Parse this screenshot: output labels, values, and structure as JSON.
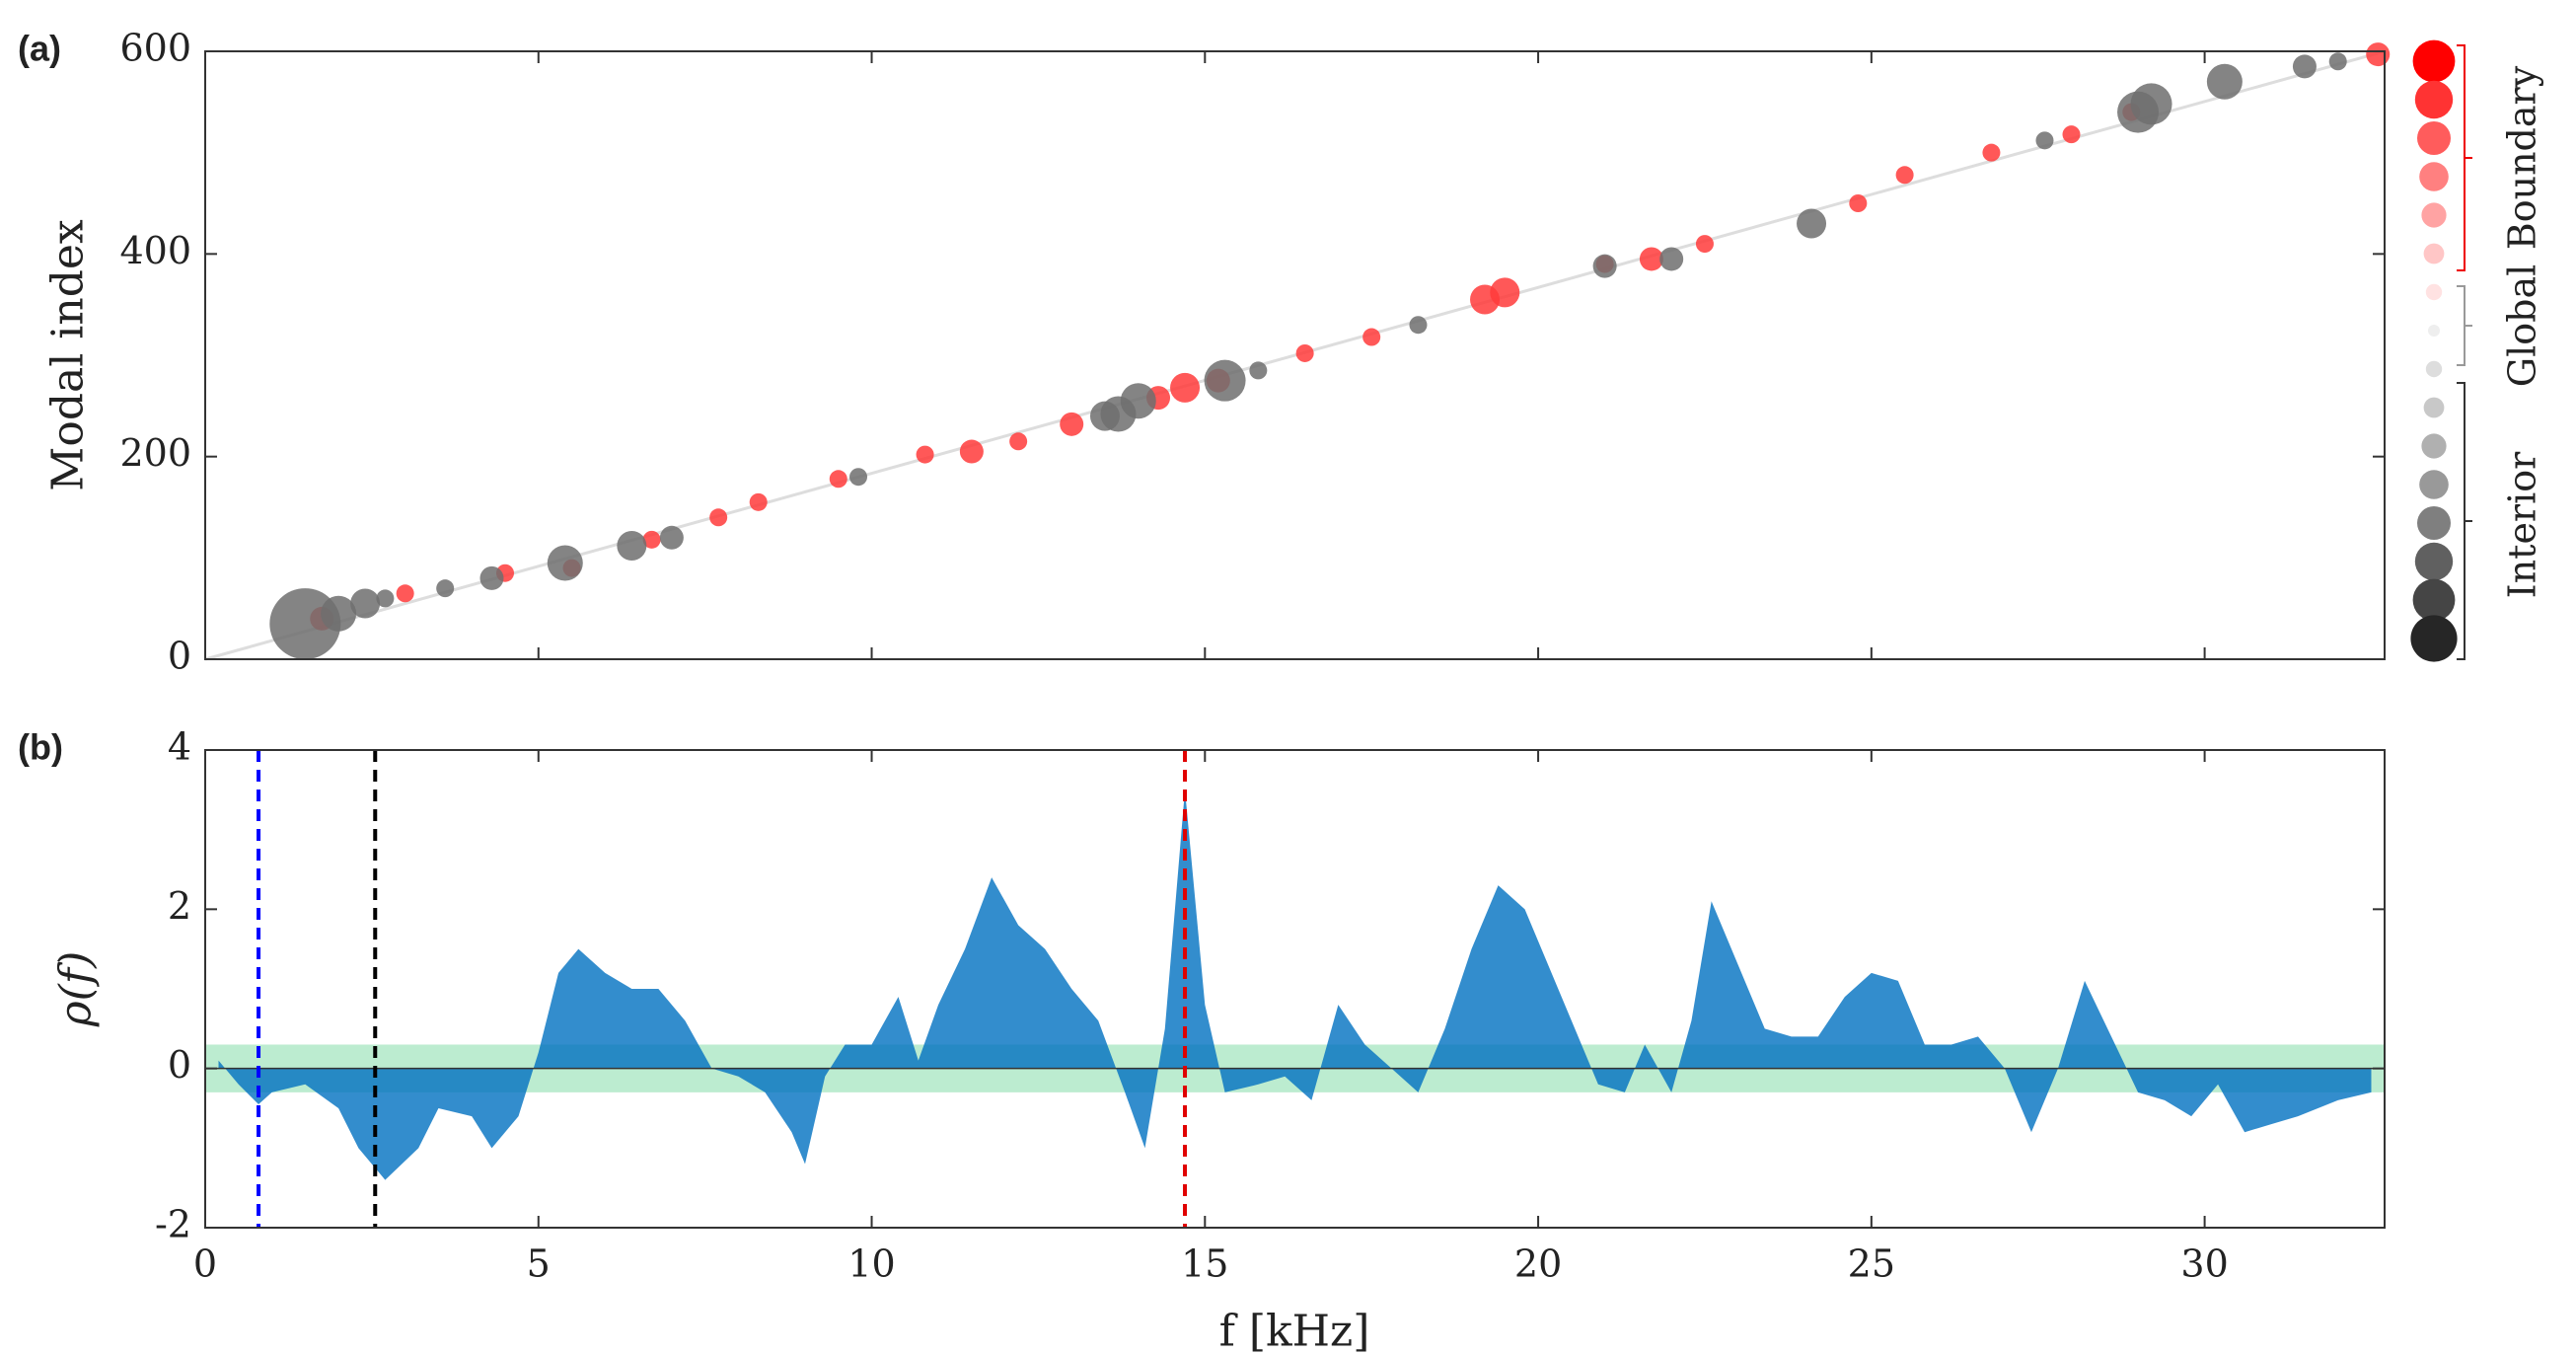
{
  "chart_data": [
    {
      "type": "scatter",
      "panel_label": "(a)",
      "ylabel": "Modal index",
      "xlim": [
        0,
        32.7
      ],
      "xticks": [
        0,
        5,
        10,
        15,
        20,
        25,
        30
      ],
      "ylim": [
        0,
        600
      ],
      "yticks": [
        0,
        200,
        400,
        600
      ],
      "legend_labels": [
        "Boundary",
        "Global",
        "Interior"
      ],
      "series": [
        {
          "name": "Boundary",
          "color": "#ff3b3b",
          "x": [
            1.75,
            3.0,
            4.5,
            5.5,
            6.7,
            7.7,
            8.3,
            9.5,
            10.8,
            11.5,
            12.2,
            13.0,
            14.3,
            14.7,
            15.2,
            16.5,
            17.5,
            19.2,
            19.5,
            21.0,
            21.7,
            22.5,
            24.8,
            25.5,
            26.8,
            28.0,
            28.9,
            32.6
          ],
          "values": [
            40,
            65,
            85,
            90,
            118,
            140,
            155,
            178,
            202,
            205,
            215,
            232,
            258,
            268,
            275,
            302,
            318,
            355,
            362,
            390,
            395,
            410,
            450,
            478,
            500,
            518,
            540,
            597
          ],
          "sizes": [
            4,
            3,
            3,
            3,
            3,
            3,
            3,
            3,
            3,
            4,
            3,
            4,
            4,
            5,
            4,
            3,
            3,
            5,
            5,
            3,
            4,
            3,
            3,
            3,
            3,
            3,
            3,
            4
          ]
        },
        {
          "name": "Interior",
          "color": "#6e6e6e",
          "x": [
            1.5,
            2.0,
            2.4,
            2.7,
            3.6,
            4.3,
            5.4,
            6.4,
            7.0,
            9.8,
            13.5,
            13.7,
            14.0,
            15.3,
            15.8,
            18.2,
            21.0,
            22.0,
            24.1,
            27.6,
            29.0,
            29.2,
            30.3,
            31.5,
            32.0
          ],
          "values": [
            35,
            45,
            55,
            60,
            70,
            80,
            95,
            112,
            120,
            180,
            240,
            242,
            255,
            275,
            285,
            330,
            388,
            395,
            430,
            512,
            540,
            548,
            570,
            585,
            590
          ],
          "sizes": [
            12,
            6,
            5,
            3,
            3,
            4,
            6,
            5,
            4,
            3,
            5,
            6,
            6,
            7,
            3,
            3,
            4,
            4,
            5,
            3,
            7,
            7,
            6,
            4,
            3
          ]
        }
      ]
    },
    {
      "type": "area",
      "panel_label": "(b)",
      "ylabel": "ρ(f)",
      "xlabel": "f  [kHz]",
      "color": "#0070c0",
      "xlim": [
        0,
        32.7
      ],
      "xticks": [
        0,
        5,
        10,
        15,
        20,
        25,
        30
      ],
      "ylim": [
        -2,
        4
      ],
      "yticks": [
        -2,
        0,
        2,
        4
      ],
      "band": [
        -0.3,
        0.3
      ],
      "band_color": "#8fe0b0",
      "vlines": [
        {
          "x": 0.8,
          "color": "#0000ff"
        },
        {
          "x": 2.55,
          "color": "#000000"
        },
        {
          "x": 14.7,
          "color": "#e00000"
        }
      ],
      "x": [
        0.2,
        0.5,
        0.8,
        1.0,
        1.5,
        2.0,
        2.3,
        2.7,
        3.2,
        3.5,
        4.0,
        4.3,
        4.7,
        5.0,
        5.3,
        5.6,
        6.0,
        6.4,
        6.8,
        7.2,
        7.6,
        8.0,
        8.4,
        8.8,
        9.0,
        9.3,
        9.6,
        10.0,
        10.4,
        10.7,
        11.0,
        11.4,
        11.8,
        12.2,
        12.6,
        13.0,
        13.4,
        13.8,
        14.1,
        14.4,
        14.7,
        15.0,
        15.3,
        15.8,
        16.2,
        16.6,
        17.0,
        17.4,
        17.8,
        18.2,
        18.6,
        19.0,
        19.4,
        19.8,
        20.1,
        20.5,
        20.9,
        21.3,
        21.6,
        22.0,
        22.3,
        22.6,
        23.0,
        23.4,
        23.8,
        24.2,
        24.6,
        25.0,
        25.4,
        25.8,
        26.2,
        26.6,
        27.0,
        27.4,
        27.8,
        28.2,
        28.6,
        29.0,
        29.4,
        29.8,
        30.2,
        30.6,
        31.0,
        31.4,
        32.0,
        32.5
      ],
      "values": [
        0.1,
        -0.2,
        -0.45,
        -0.3,
        -0.2,
        -0.5,
        -1.0,
        -1.4,
        -1.0,
        -0.5,
        -0.6,
        -1.0,
        -0.6,
        0.2,
        1.2,
        1.5,
        1.2,
        1.0,
        1.0,
        0.6,
        0.0,
        -0.1,
        -0.3,
        -0.8,
        -1.2,
        -0.1,
        0.3,
        0.3,
        0.9,
        0.1,
        0.8,
        1.5,
        2.4,
        1.8,
        1.5,
        1.0,
        0.6,
        -0.3,
        -1.0,
        0.5,
        3.5,
        0.8,
        -0.3,
        -0.2,
        -0.1,
        -0.4,
        0.8,
        0.3,
        0.0,
        -0.3,
        0.5,
        1.5,
        2.3,
        2.0,
        1.4,
        0.6,
        -0.2,
        -0.3,
        0.3,
        -0.3,
        0.6,
        2.1,
        1.3,
        0.5,
        0.4,
        0.4,
        0.9,
        1.2,
        1.1,
        0.3,
        0.3,
        0.4,
        0.0,
        -0.8,
        0.0,
        1.1,
        0.4,
        -0.3,
        -0.4,
        -0.6,
        -0.2,
        -0.8,
        -0.7,
        -0.6,
        -0.4,
        -0.3
      ]
    }
  ]
}
